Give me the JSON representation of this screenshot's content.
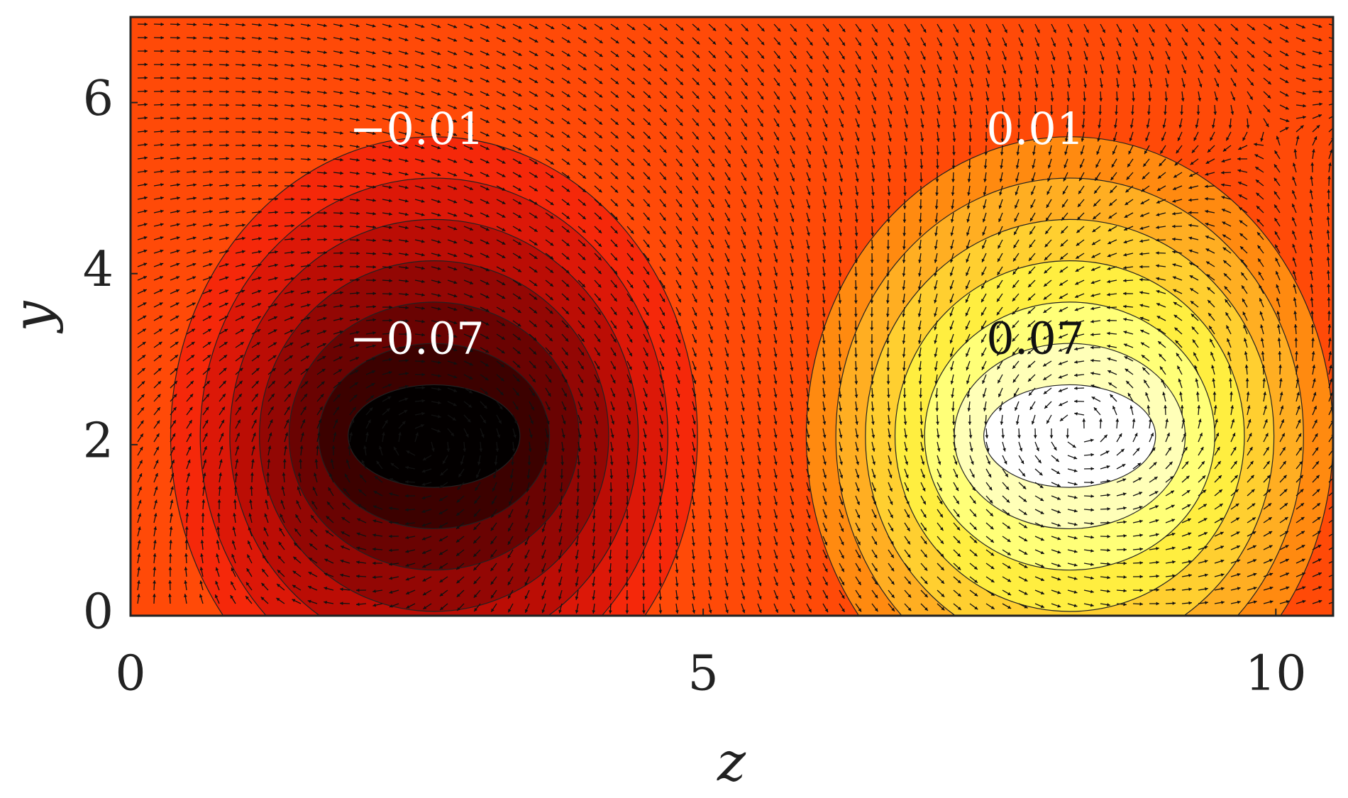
{
  "chart_data": {
    "type": "contour",
    "xlabel": "z",
    "ylabel": "y",
    "xlim": [
      0,
      10.5
    ],
    "ylim": [
      0,
      7
    ],
    "xticks": [
      0,
      5,
      10
    ],
    "yticks": [
      0,
      2,
      4,
      6
    ],
    "annotations": [
      {
        "text": "−0.01",
        "x": 2.5,
        "y": 5.65,
        "color": "#ffffff"
      },
      {
        "text": "−0.07",
        "x": 2.5,
        "y": 3.2,
        "color": "#ffffff"
      },
      {
        "text": "0.01",
        "x": 7.9,
        "y": 5.65,
        "color": "#ffffff"
      },
      {
        "text": "0.07",
        "x": 7.9,
        "y": 3.2,
        "color": "#111111"
      }
    ]
  }
}
